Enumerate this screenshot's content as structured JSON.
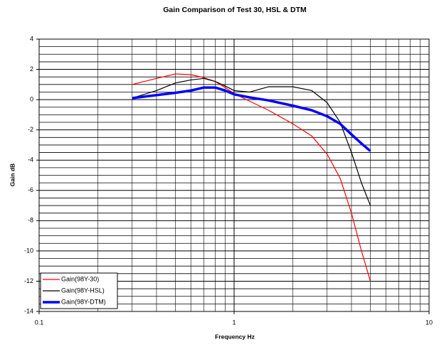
{
  "chart_data": {
    "type": "line",
    "title": "Gain Comparison of Test 30, HSL & DTM",
    "xlabel": "Frequency Hz",
    "ylabel": "Gain dB",
    "x": [
      0.3,
      0.4,
      0.5,
      0.6,
      0.7,
      0.8,
      0.9,
      1,
      1.2,
      1.5,
      2,
      2.5,
      3,
      3.5,
      4,
      4.5,
      5
    ],
    "series": [
      {
        "name": "Gain(98Y-30)",
        "color": "#ff0000",
        "width": 1.2,
        "values": [
          1.0,
          1.4,
          1.7,
          1.65,
          1.45,
          1.2,
          0.8,
          0.4,
          -0.1,
          -0.7,
          -1.6,
          -2.4,
          -3.6,
          -5.2,
          -7.5,
          -10,
          -12
        ]
      },
      {
        "name": "Gain(98Y-HSL)",
        "color": "#000000",
        "width": 1.2,
        "values": [
          0.1,
          0.6,
          1.1,
          1.3,
          1.4,
          1.2,
          0.9,
          0.6,
          0.5,
          0.85,
          0.85,
          0.6,
          -0.2,
          -1.5,
          -3.5,
          -5.5,
          -7
        ]
      },
      {
        "name": "Gain(98Y-DTM)",
        "color": "#0000ff",
        "width": 3.5,
        "values": [
          0.1,
          0.3,
          0.45,
          0.6,
          0.8,
          0.8,
          0.6,
          0.35,
          0.15,
          -0.05,
          -0.4,
          -0.7,
          -1.1,
          -1.6,
          -2.3,
          -2.9,
          -3.4
        ]
      }
    ],
    "xlim": [
      0.1,
      10
    ],
    "xticks": [
      0.1,
      1,
      10
    ],
    "xscale": "log",
    "x_minor_ticks": [
      0.2,
      0.3,
      0.4,
      0.5,
      0.6,
      0.7,
      0.8,
      0.9,
      2,
      3,
      4,
      5,
      6,
      7,
      8,
      9
    ],
    "ylim": [
      -14,
      4
    ],
    "yticks": [
      -14,
      -12,
      -10,
      -8,
      -6,
      -4,
      -2,
      0,
      2,
      4
    ],
    "y_minor_ticks": [
      -13.5,
      -13,
      -12.5,
      -11.5,
      -11,
      -10.5,
      -9.5,
      -9,
      -8.5,
      -7.5,
      -7,
      -6.5,
      -5.5,
      -5,
      -4.5,
      -3.5,
      -3,
      -2.5,
      -1.5,
      -1,
      -0.5,
      0.5,
      1,
      1.5,
      2.5,
      3,
      3.5
    ],
    "grid": true,
    "legend": "lower left"
  }
}
